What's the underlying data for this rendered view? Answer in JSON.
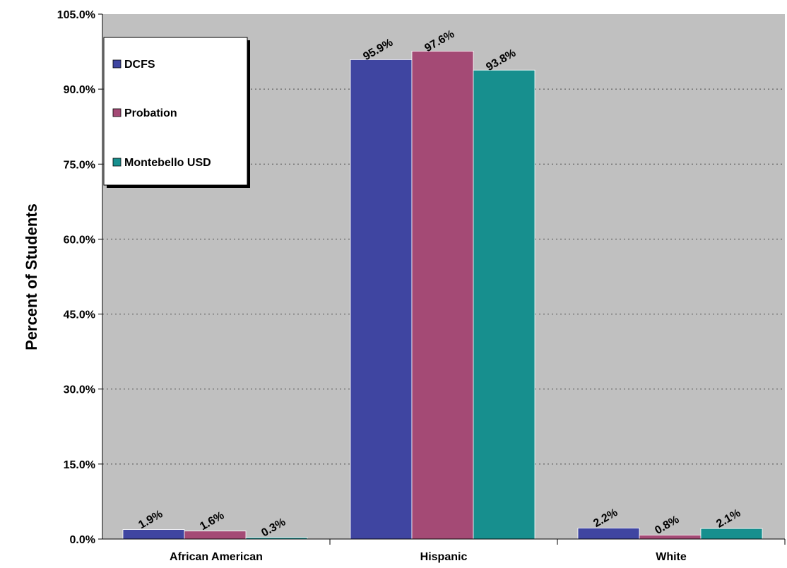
{
  "chart_data": {
    "type": "bar",
    "categories": [
      "African American",
      "Hispanic",
      "White"
    ],
    "series": [
      {
        "name": "DCFS",
        "values": [
          1.9,
          95.9,
          2.2
        ],
        "labels": [
          "1.9%",
          "95.9%",
          "2.2%"
        ],
        "color": "#3f45a1"
      },
      {
        "name": "Probation",
        "values": [
          1.6,
          97.6,
          0.8
        ],
        "labels": [
          "1.6%",
          "97.6%",
          "0.8%"
        ],
        "color": "#a44a75"
      },
      {
        "name": "Montebello USD",
        "values": [
          0.3,
          93.8,
          2.1
        ],
        "labels": [
          "0.3%",
          "93.8%",
          "2.1%"
        ],
        "color": "#178f8e"
      }
    ],
    "ylabel": "Percent of Students",
    "ylim": [
      0,
      105
    ],
    "yticks": [
      0,
      15,
      30,
      45,
      60,
      75,
      90,
      105
    ],
    "ytick_labels": [
      "0.0%",
      "15.0%",
      "30.0%",
      "45.0%",
      "60.0%",
      "75.0%",
      "90.0%",
      "105.0%"
    ],
    "grid": true,
    "legend_position": "top-left",
    "plot_background": "#c0c0c0"
  }
}
